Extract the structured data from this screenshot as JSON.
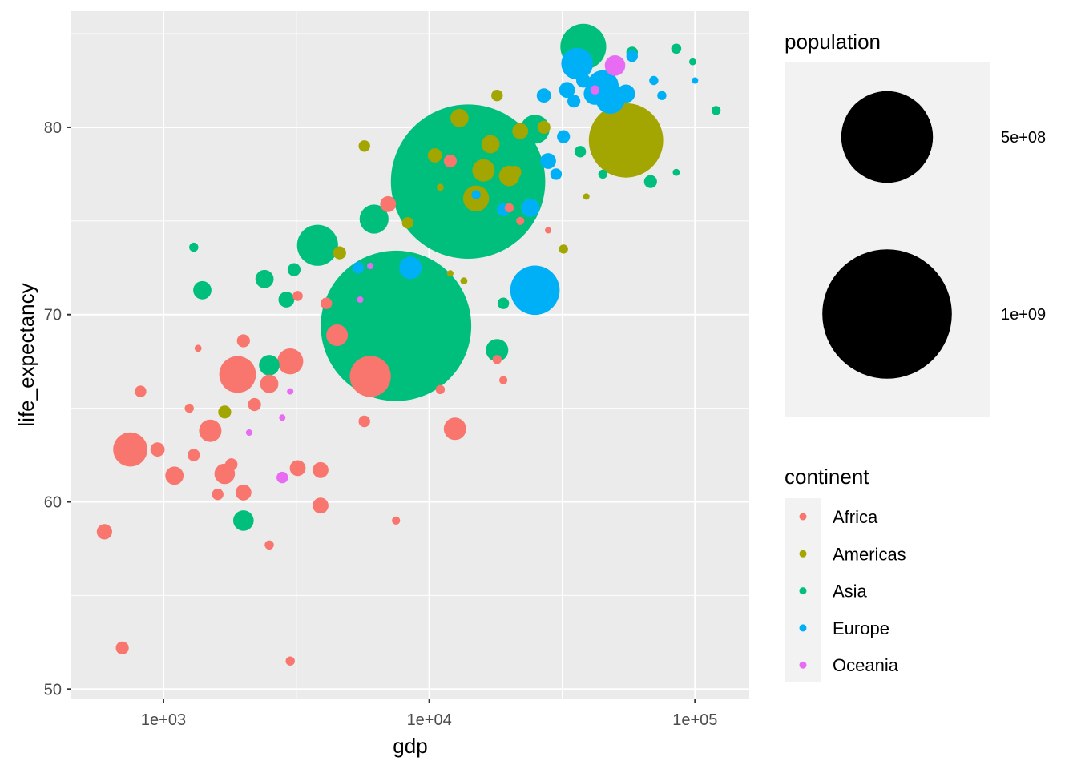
{
  "chart_data": {
    "type": "scatter",
    "xlabel": "gdp",
    "ylabel": "life_expectancy",
    "x_scale": "log10",
    "xlim": [
      450,
      160000
    ],
    "ylim": [
      49.5,
      86.2
    ],
    "x_ticks": [
      1000,
      10000,
      100000
    ],
    "x_tick_labels": [
      "1e+03",
      "1e+04",
      "1e+05"
    ],
    "y_ticks": [
      50,
      60,
      70,
      80
    ],
    "y_tick_labels": [
      "50",
      "60",
      "70",
      "80"
    ],
    "grid": true,
    "panel_background": "#EBEBEB",
    "size_legend": {
      "title": "population",
      "values": [
        500000000,
        1000000000
      ],
      "labels": [
        "5e+08",
        "1e+09"
      ],
      "position": "right"
    },
    "color_legend": {
      "title": "continent",
      "position": "right",
      "entries": [
        {
          "name": "Africa",
          "color": "#F8766D"
        },
        {
          "name": "Americas",
          "color": "#A3A500"
        },
        {
          "name": "Asia",
          "color": "#00BF7D"
        },
        {
          "name": "Europe",
          "color": "#00B0F6"
        },
        {
          "name": "Oceania",
          "color": "#E76BF3"
        }
      ]
    },
    "series": [
      {
        "name": "Africa",
        "color": "#F8766D",
        "points": [
          [
            750,
            62.8,
            70000000
          ],
          [
            700,
            52.2,
            10000000
          ],
          [
            600,
            58.4,
            14000000
          ],
          [
            820,
            65.9,
            8000000
          ],
          [
            950,
            62.8,
            12000000
          ],
          [
            1100,
            61.4,
            20000000
          ],
          [
            1300,
            62.5,
            9000000
          ],
          [
            1250,
            65.0,
            5000000
          ],
          [
            1500,
            63.8,
            30000000
          ],
          [
            1700,
            61.5,
            25000000
          ],
          [
            1900,
            66.8,
            80000000
          ],
          [
            2000,
            60.5,
            15000000
          ],
          [
            1600,
            60.4,
            8000000
          ],
          [
            1800,
            62.0,
            9000000
          ],
          [
            2000,
            68.6,
            10000000
          ],
          [
            1350,
            68.2,
            3000000
          ],
          [
            2200,
            65.2,
            10000000
          ],
          [
            2500,
            66.3,
            20000000
          ],
          [
            3000,
            67.5,
            40000000
          ],
          [
            3200,
            61.8,
            15000000
          ],
          [
            3900,
            61.7,
            15000000
          ],
          [
            3900,
            59.8,
            15000000
          ],
          [
            3000,
            51.5,
            5000000
          ],
          [
            4100,
            70.6,
            8000000
          ],
          [
            4500,
            68.9,
            28000000
          ],
          [
            6000,
            66.7,
            100000000
          ],
          [
            5700,
            64.3,
            8000000
          ],
          [
            7500,
            59.0,
            4000000
          ],
          [
            7000,
            75.9,
            15000000
          ],
          [
            11000,
            66.0,
            5000000
          ],
          [
            12500,
            63.9,
            30000000
          ],
          [
            12000,
            78.2,
            10000000
          ],
          [
            18000,
            67.6,
            5000000
          ],
          [
            19000,
            66.5,
            4000000
          ],
          [
            20000,
            75.7,
            5000000
          ],
          [
            22000,
            75.0,
            4000000
          ],
          [
            28000,
            74.5,
            2000000
          ],
          [
            2500,
            57.7,
            5000000
          ],
          [
            3200,
            71.0,
            6000000
          ]
        ]
      },
      {
        "name": "Americas",
        "color": "#A3A500",
        "points": [
          [
            1700,
            64.8,
            10000000
          ],
          [
            5700,
            79.0,
            8000000
          ],
          [
            4600,
            73.3,
            10000000
          ],
          [
            8300,
            74.9,
            8000000
          ],
          [
            10500,
            78.5,
            12000000
          ],
          [
            11000,
            76.8,
            3000000
          ],
          [
            12000,
            72.2,
            2000000
          ],
          [
            13500,
            71.8,
            3000000
          ],
          [
            13000,
            80.5,
            20000000
          ],
          [
            15000,
            76.2,
            40000000
          ],
          [
            16000,
            77.7,
            30000000
          ],
          [
            17000,
            79.1,
            20000000
          ],
          [
            18000,
            81.7,
            8000000
          ],
          [
            20000,
            77.4,
            25000000
          ],
          [
            22000,
            79.8,
            15000000
          ],
          [
            21000,
            77.6,
            10000000
          ],
          [
            32000,
            73.5,
            5000000
          ],
          [
            39000,
            76.3,
            2000000
          ],
          [
            55000,
            79.3,
            330000000
          ],
          [
            27000,
            80.0,
            10000000
          ]
        ]
      },
      {
        "name": "Asia",
        "color": "#00BF7D",
        "points": [
          [
            7500,
            69.4,
            1350000000
          ],
          [
            14000,
            77.1,
            1420000000
          ],
          [
            3800,
            73.7,
            100000000
          ],
          [
            6200,
            75.1,
            50000000
          ],
          [
            2500,
            67.3,
            25000000
          ],
          [
            1400,
            71.3,
            20000000
          ],
          [
            1300,
            73.6,
            5000000
          ],
          [
            2400,
            71.9,
            20000000
          ],
          [
            2900,
            70.8,
            15000000
          ],
          [
            3100,
            72.4,
            10000000
          ],
          [
            2000,
            59.0,
            25000000
          ],
          [
            18000,
            68.1,
            30000000
          ],
          [
            19000,
            70.6,
            8000000
          ],
          [
            25000,
            79.9,
            50000000
          ],
          [
            20000,
            78.3,
            40000000
          ],
          [
            38000,
            84.3,
            125000000
          ],
          [
            37000,
            78.7,
            8000000
          ],
          [
            58000,
            84.0,
            8000000
          ],
          [
            85000,
            84.2,
            6000000
          ],
          [
            98000,
            83.5,
            3000000
          ],
          [
            85000,
            77.6,
            3000000
          ],
          [
            68000,
            77.1,
            10000000
          ],
          [
            120000,
            80.9,
            5000000
          ],
          [
            45000,
            77.5,
            5000000
          ]
        ]
      },
      {
        "name": "Europe",
        "color": "#00B0F6",
        "points": [
          [
            25000,
            71.3,
            145000000
          ],
          [
            8500,
            72.5,
            30000000
          ],
          [
            5400,
            72.5,
            8000000
          ],
          [
            24000,
            75.7,
            20000000
          ],
          [
            28000,
            78.2,
            15000000
          ],
          [
            30000,
            77.5,
            8000000
          ],
          [
            32000,
            79.5,
            10000000
          ],
          [
            27000,
            81.7,
            12000000
          ],
          [
            33000,
            82.0,
            15000000
          ],
          [
            35000,
            81.4,
            10000000
          ],
          [
            38000,
            82.5,
            12000000
          ],
          [
            42000,
            81.8,
            30000000
          ],
          [
            45000,
            82.2,
            60000000
          ],
          [
            48000,
            81.5,
            50000000
          ],
          [
            36000,
            83.4,
            60000000
          ],
          [
            55000,
            81.8,
            20000000
          ],
          [
            58000,
            83.8,
            8000000
          ],
          [
            70000,
            82.5,
            5000000
          ],
          [
            75000,
            81.7,
            5000000
          ],
          [
            100000,
            82.5,
            2000000
          ],
          [
            15000,
            76.4,
            5000000
          ],
          [
            19000,
            75.6,
            10000000
          ]
        ]
      },
      {
        "name": "Oceania",
        "color": "#E76BF3",
        "points": [
          [
            2800,
            61.3,
            8000000
          ],
          [
            2800,
            64.5,
            2000000
          ],
          [
            2100,
            63.7,
            1000000
          ],
          [
            3000,
            65.9,
            1000000
          ],
          [
            5500,
            70.8,
            1000000
          ],
          [
            6000,
            72.6,
            1000000
          ],
          [
            50000,
            83.3,
            25000000
          ],
          [
            42000,
            82.0,
            5000000
          ]
        ]
      }
    ]
  }
}
